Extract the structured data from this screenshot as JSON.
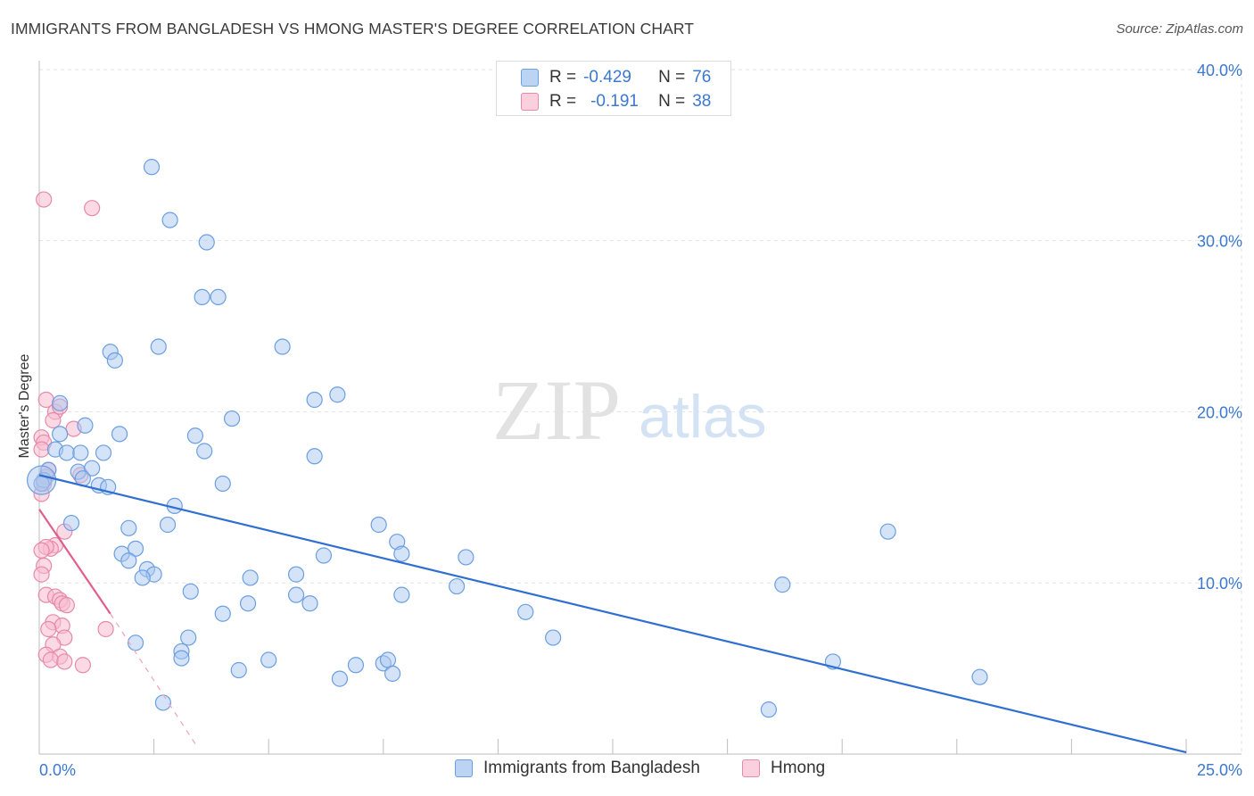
{
  "header": {
    "title": "IMMIGRANTS FROM BANGLADESH VS HMONG MASTER'S DEGREE CORRELATION CHART",
    "source": "Source: ZipAtlas.com"
  },
  "colors": {
    "blue_fill": "#a9c8ef",
    "blue_stroke": "#6b9fe0",
    "blue_line": "#2f6fd1",
    "pink_fill": "#f7bcd0",
    "pink_stroke": "#e68aa9",
    "pink_line": "#e0608a",
    "axis_label": "#3b78d0"
  },
  "stats": {
    "series1": {
      "r_label": "R =",
      "r_value": "-0.429",
      "n_label": "N =",
      "n_value": "76"
    },
    "series2": {
      "r_label": "R =",
      "r_value": "-0.191",
      "n_label": "N =",
      "n_value": "38"
    }
  },
  "legend": {
    "series1": "Immigrants from Bangladesh",
    "series2": "Hmong"
  },
  "watermark": {
    "zip": "ZIP",
    "atlas": "atlas"
  },
  "chart_data": {
    "type": "scatter",
    "title": "IMMIGRANTS FROM BANGLADESH VS HMONG MASTER'S DEGREE CORRELATION CHART",
    "xlabel": "",
    "ylabel": "Master's Degree",
    "xlim": [
      0,
      25
    ],
    "ylim": [
      0,
      40
    ],
    "x_tick_labels": [
      "0.0%",
      "25.0%"
    ],
    "y_ticks": [
      10,
      20,
      30,
      40
    ],
    "y_tick_labels": [
      "10.0%",
      "20.0%",
      "30.0%",
      "40.0%"
    ],
    "grid": true,
    "series": [
      {
        "name": "Immigrants from Bangladesh",
        "trend": {
          "x": [
            0,
            25
          ],
          "y": [
            16.3,
            0.1
          ]
        },
        "points": [
          [
            2.45,
            34.3
          ],
          [
            2.85,
            31.2
          ],
          [
            3.65,
            29.9
          ],
          [
            3.55,
            26.7
          ],
          [
            3.9,
            26.7
          ],
          [
            1.55,
            23.5
          ],
          [
            2.6,
            23.8
          ],
          [
            5.3,
            23.8
          ],
          [
            1.65,
            23.0
          ],
          [
            6.5,
            21.0
          ],
          [
            6.0,
            20.7
          ],
          [
            0.45,
            20.5
          ],
          [
            4.2,
            19.6
          ],
          [
            1.0,
            19.2
          ],
          [
            0.45,
            18.7
          ],
          [
            1.75,
            18.7
          ],
          [
            3.4,
            18.6
          ],
          [
            0.35,
            17.8
          ],
          [
            0.6,
            17.6
          ],
          [
            0.9,
            17.6
          ],
          [
            1.4,
            17.6
          ],
          [
            3.6,
            17.7
          ],
          [
            6.0,
            17.4
          ],
          [
            0.2,
            16.6
          ],
          [
            0.85,
            16.5
          ],
          [
            1.15,
            16.7
          ],
          [
            0.1,
            16.0
          ],
          [
            0.95,
            16.1
          ],
          [
            1.3,
            15.7
          ],
          [
            1.5,
            15.6
          ],
          [
            4.0,
            15.8
          ],
          [
            0.05,
            15.8
          ],
          [
            2.95,
            14.5
          ],
          [
            0.7,
            13.5
          ],
          [
            1.95,
            13.2
          ],
          [
            2.8,
            13.4
          ],
          [
            7.4,
            13.4
          ],
          [
            18.5,
            13.0
          ],
          [
            7.8,
            12.4
          ],
          [
            2.1,
            12.0
          ],
          [
            1.8,
            11.7
          ],
          [
            7.9,
            11.7
          ],
          [
            6.2,
            11.6
          ],
          [
            1.95,
            11.3
          ],
          [
            9.3,
            11.5
          ],
          [
            2.35,
            10.8
          ],
          [
            2.5,
            10.5
          ],
          [
            2.25,
            10.3
          ],
          [
            5.6,
            10.5
          ],
          [
            4.6,
            10.3
          ],
          [
            9.1,
            9.8
          ],
          [
            16.2,
            9.9
          ],
          [
            3.3,
            9.5
          ],
          [
            5.6,
            9.3
          ],
          [
            7.9,
            9.3
          ],
          [
            4.55,
            8.8
          ],
          [
            5.9,
            8.8
          ],
          [
            10.6,
            8.3
          ],
          [
            4.0,
            8.2
          ],
          [
            11.2,
            6.8
          ],
          [
            3.25,
            6.8
          ],
          [
            2.1,
            6.5
          ],
          [
            3.1,
            6.0
          ],
          [
            3.1,
            5.6
          ],
          [
            5.0,
            5.5
          ],
          [
            17.3,
            5.4
          ],
          [
            7.5,
            5.3
          ],
          [
            7.6,
            5.5
          ],
          [
            6.9,
            5.2
          ],
          [
            4.35,
            4.9
          ],
          [
            7.7,
            4.7
          ],
          [
            6.55,
            4.4
          ],
          [
            20.5,
            4.5
          ],
          [
            2.7,
            3.0
          ],
          [
            15.9,
            2.6
          ],
          [
            0.05,
            16.0
          ]
        ]
      },
      {
        "name": "Hmong",
        "trend": {
          "x": [
            0,
            1.55
          ],
          "y": [
            14.3,
            8.2
          ],
          "dash_x": [
            1.55,
            3.4
          ],
          "dash_y": [
            8.2,
            0.6
          ]
        },
        "points": [
          [
            0.1,
            32.4
          ],
          [
            1.15,
            31.9
          ],
          [
            0.15,
            20.7
          ],
          [
            0.35,
            20.0
          ],
          [
            0.45,
            20.3
          ],
          [
            0.3,
            19.5
          ],
          [
            0.75,
            19.0
          ],
          [
            0.05,
            18.5
          ],
          [
            0.1,
            18.2
          ],
          [
            0.05,
            17.8
          ],
          [
            0.2,
            16.6
          ],
          [
            0.9,
            16.3
          ],
          [
            0.15,
            16.2
          ],
          [
            0.1,
            15.8
          ],
          [
            0.05,
            15.2
          ],
          [
            0.55,
            13.0
          ],
          [
            0.35,
            12.2
          ],
          [
            0.25,
            12.0
          ],
          [
            0.15,
            12.1
          ],
          [
            0.05,
            11.9
          ],
          [
            0.1,
            11.0
          ],
          [
            0.05,
            10.5
          ],
          [
            0.15,
            9.3
          ],
          [
            0.35,
            9.2
          ],
          [
            0.45,
            9.0
          ],
          [
            0.5,
            8.8
          ],
          [
            0.6,
            8.7
          ],
          [
            0.3,
            7.7
          ],
          [
            0.5,
            7.5
          ],
          [
            0.2,
            7.3
          ],
          [
            1.45,
            7.3
          ],
          [
            0.55,
            6.8
          ],
          [
            0.3,
            6.4
          ],
          [
            0.15,
            5.8
          ],
          [
            0.45,
            5.7
          ],
          [
            0.25,
            5.5
          ],
          [
            0.55,
            5.4
          ],
          [
            0.95,
            5.2
          ]
        ]
      }
    ]
  }
}
